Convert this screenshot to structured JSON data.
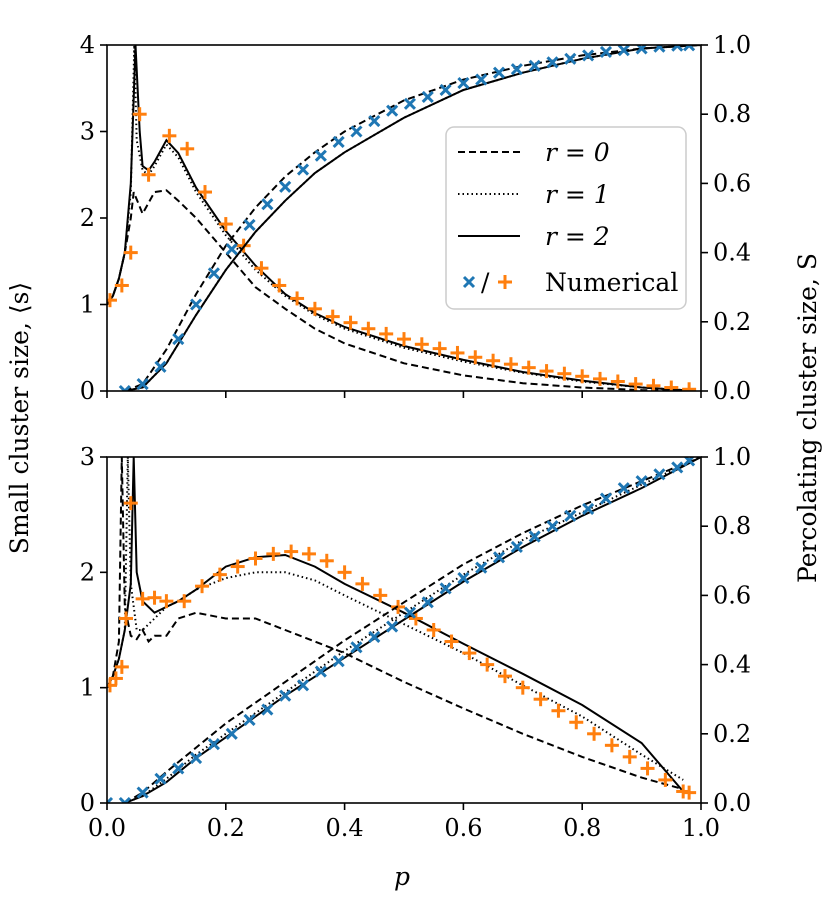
{
  "figure": {
    "xlabel": "p",
    "ylabel_left": "Small cluster size, ⟨s⟩",
    "ylabel_right": "Percolating cluster size, S"
  },
  "colors": {
    "line": "#000000",
    "cross_marker": "#1f77b4",
    "plus_marker": "#ff7f0e",
    "frame": "#000000"
  },
  "legend": {
    "entries": [
      {
        "label": "r = 0",
        "style": "dashed"
      },
      {
        "label": "r = 1",
        "style": "dotted"
      },
      {
        "label": "r = 2",
        "style": "solid"
      },
      {
        "label": "Numerical",
        "style": "markers",
        "separator": "/"
      }
    ]
  },
  "chart_data": [
    {
      "type": "line",
      "panel": "top",
      "xlim": [
        0,
        1
      ],
      "ylim_left": [
        0,
        4
      ],
      "ylim_right": [
        0,
        1
      ],
      "xticks": [
        0.0,
        0.2,
        0.4,
        0.6,
        0.8,
        1.0
      ],
      "yticks_left": [
        "0",
        "1",
        "2",
        "3",
        "4"
      ],
      "yticks_right": [
        "0.0",
        "0.2",
        "0.4",
        "0.6",
        "0.8",
        "1.0"
      ],
      "small_cluster": {
        "axis": "left",
        "series": [
          {
            "name": "r = 0",
            "style": "dashed",
            "x": [
              0.0,
              0.01,
              0.02,
              0.03,
              0.04,
              0.045,
              0.06,
              0.08,
              0.1,
              0.12,
              0.15,
              0.2,
              0.25,
              0.3,
              0.35,
              0.4,
              0.5,
              0.6,
              0.7,
              0.8,
              0.9,
              0.97
            ],
            "y": [
              1.0,
              1.1,
              1.3,
              1.6,
              2.0,
              2.3,
              2.05,
              2.3,
              2.32,
              2.2,
              2.0,
              1.6,
              1.2,
              0.95,
              0.72,
              0.55,
              0.32,
              0.18,
              0.09,
              0.04,
              0.01,
              0.0
            ]
          },
          {
            "name": "r = 1",
            "style": "dotted",
            "x": [
              0.0,
              0.01,
              0.02,
              0.03,
              0.04,
              0.046,
              0.05,
              0.06,
              0.07,
              0.08,
              0.1,
              0.12,
              0.15,
              0.2,
              0.25,
              0.3,
              0.35,
              0.4,
              0.5,
              0.6,
              0.7,
              0.8,
              0.9,
              0.97
            ],
            "y": [
              1.0,
              1.1,
              1.3,
              1.6,
              2.3,
              4.0,
              2.9,
              2.55,
              2.5,
              2.6,
              2.85,
              2.7,
              2.3,
              1.8,
              1.4,
              1.1,
              0.88,
              0.72,
              0.5,
              0.34,
              0.21,
              0.11,
              0.04,
              0.01
            ]
          },
          {
            "name": "r = 2",
            "style": "solid",
            "x": [
              0.0,
              0.01,
              0.02,
              0.03,
              0.04,
              0.048,
              0.055,
              0.06,
              0.07,
              0.08,
              0.1,
              0.12,
              0.15,
              0.2,
              0.25,
              0.3,
              0.35,
              0.4,
              0.5,
              0.6,
              0.7,
              0.8,
              0.9,
              0.97
            ],
            "y": [
              1.0,
              1.1,
              1.3,
              1.6,
              2.4,
              4.0,
              3.0,
              2.6,
              2.55,
              2.65,
              2.9,
              2.75,
              2.35,
              1.85,
              1.45,
              1.12,
              0.9,
              0.74,
              0.52,
              0.36,
              0.22,
              0.12,
              0.04,
              0.01
            ]
          },
          {
            "name": "Numerical",
            "style": "plus",
            "color": "#ff7f0e",
            "x": [
              0.005,
              0.025,
              0.04,
              0.055,
              0.07,
              0.105,
              0.135,
              0.165,
              0.2,
              0.23,
              0.26,
              0.29,
              0.32,
              0.35,
              0.38,
              0.41,
              0.44,
              0.47,
              0.5,
              0.53,
              0.56,
              0.59,
              0.62,
              0.65,
              0.68,
              0.71,
              0.74,
              0.77,
              0.8,
              0.83,
              0.86,
              0.89,
              0.92,
              0.95,
              0.98
            ],
            "y": [
              1.05,
              1.22,
              1.6,
              3.2,
              2.5,
              2.95,
              2.8,
              2.3,
              1.93,
              1.68,
              1.42,
              1.22,
              1.07,
              0.95,
              0.86,
              0.79,
              0.72,
              0.66,
              0.6,
              0.54,
              0.49,
              0.44,
              0.39,
              0.35,
              0.31,
              0.27,
              0.23,
              0.2,
              0.17,
              0.14,
              0.11,
              0.08,
              0.06,
              0.04,
              0.02
            ]
          }
        ]
      },
      "percolating_cluster": {
        "axis": "right",
        "series": [
          {
            "name": "r = 0",
            "style": "dashed",
            "x": [
              0.03,
              0.06,
              0.1,
              0.15,
              0.2,
              0.25,
              0.3,
              0.35,
              0.4,
              0.5,
              0.6,
              0.7,
              0.8,
              0.9,
              1.0
            ],
            "y": [
              0.0,
              0.02,
              0.12,
              0.28,
              0.42,
              0.53,
              0.62,
              0.69,
              0.75,
              0.84,
              0.9,
              0.94,
              0.97,
              0.99,
              1.0
            ]
          },
          {
            "name": "r = 1",
            "style": "dotted",
            "x": [
              0.03,
              0.06,
              0.1,
              0.15,
              0.2,
              0.25,
              0.3,
              0.35,
              0.4,
              0.5,
              0.6,
              0.7,
              0.8,
              0.9,
              1.0
            ],
            "y": [
              0.0,
              0.01,
              0.08,
              0.22,
              0.35,
              0.46,
              0.55,
              0.63,
              0.69,
              0.79,
              0.87,
              0.92,
              0.96,
              0.99,
              1.0
            ]
          },
          {
            "name": "r = 2",
            "style": "solid",
            "x": [
              0.03,
              0.06,
              0.1,
              0.15,
              0.2,
              0.25,
              0.3,
              0.35,
              0.4,
              0.5,
              0.6,
              0.7,
              0.8,
              0.9,
              1.0
            ],
            "y": [
              0.0,
              0.01,
              0.08,
              0.22,
              0.35,
              0.46,
              0.55,
              0.63,
              0.69,
              0.79,
              0.87,
              0.92,
              0.96,
              0.99,
              1.0
            ]
          },
          {
            "name": "Numerical",
            "style": "cross",
            "color": "#1f77b4",
            "x": [
              0.03,
              0.06,
              0.09,
              0.12,
              0.15,
              0.18,
              0.21,
              0.24,
              0.27,
              0.3,
              0.33,
              0.36,
              0.39,
              0.42,
              0.45,
              0.48,
              0.51,
              0.54,
              0.57,
              0.6,
              0.63,
              0.66,
              0.69,
              0.72,
              0.75,
              0.78,
              0.81,
              0.84,
              0.87,
              0.9,
              0.93,
              0.96,
              0.98
            ],
            "y": [
              0.0,
              0.02,
              0.07,
              0.15,
              0.25,
              0.34,
              0.41,
              0.48,
              0.54,
              0.59,
              0.64,
              0.68,
              0.72,
              0.75,
              0.78,
              0.81,
              0.83,
              0.85,
              0.87,
              0.89,
              0.9,
              0.92,
              0.93,
              0.94,
              0.95,
              0.96,
              0.97,
              0.98,
              0.985,
              0.99,
              0.995,
              0.998,
              0.999
            ]
          }
        ]
      }
    },
    {
      "type": "line",
      "panel": "bottom",
      "xlim": [
        0,
        1
      ],
      "ylim_left": [
        0,
        3
      ],
      "ylim_right": [
        0,
        1
      ],
      "xticks": [
        0.0,
        0.2,
        0.4,
        0.6,
        0.8,
        1.0
      ],
      "xtick_labels": [
        "0.0",
        "0.2",
        "0.4",
        "0.6",
        "0.8",
        "1.0"
      ],
      "yticks_left": [
        "0",
        "1",
        "2",
        "3"
      ],
      "yticks_right": [
        "0.0",
        "0.2",
        "0.4",
        "0.6",
        "0.8",
        "1.0"
      ],
      "small_cluster": {
        "axis": "left",
        "series": [
          {
            "name": "r = 0",
            "style": "dashed",
            "x": [
              0.0,
              0.01,
              0.02,
              0.025,
              0.03,
              0.04,
              0.05,
              0.06,
              0.07,
              0.08,
              0.1,
              0.12,
              0.15,
              0.2,
              0.25,
              0.3,
              0.4,
              0.5,
              0.6,
              0.7,
              0.8,
              0.9,
              0.97
            ],
            "y": [
              1.0,
              1.1,
              1.4,
              3.0,
              1.7,
              1.45,
              1.42,
              1.5,
              1.4,
              1.45,
              1.45,
              1.6,
              1.65,
              1.6,
              1.6,
              1.5,
              1.3,
              1.05,
              0.82,
              0.6,
              0.4,
              0.22,
              0.12
            ]
          },
          {
            "name": "r = 1",
            "style": "dotted",
            "x": [
              0.0,
              0.01,
              0.02,
              0.03,
              0.035,
              0.04,
              0.05,
              0.06,
              0.08,
              0.1,
              0.12,
              0.15,
              0.2,
              0.25,
              0.3,
              0.35,
              0.4,
              0.5,
              0.6,
              0.7,
              0.8,
              0.9,
              0.97
            ],
            "y": [
              1.0,
              1.1,
              1.25,
              1.5,
              3.0,
              1.9,
              1.5,
              1.5,
              1.6,
              1.7,
              1.75,
              1.85,
              1.95,
              2.0,
              2.0,
              1.93,
              1.8,
              1.55,
              1.3,
              1.02,
              0.75,
              0.42,
              0.2
            ]
          },
          {
            "name": "r = 2",
            "style": "solid",
            "x": [
              0.0,
              0.01,
              0.02,
              0.03,
              0.04,
              0.045,
              0.05,
              0.06,
              0.08,
              0.1,
              0.12,
              0.15,
              0.2,
              0.25,
              0.3,
              0.35,
              0.4,
              0.5,
              0.6,
              0.7,
              0.8,
              0.9,
              0.97
            ],
            "y": [
              1.0,
              1.1,
              1.25,
              1.5,
              1.9,
              3.0,
              2.0,
              1.75,
              1.65,
              1.7,
              1.75,
              1.85,
              2.05,
              2.13,
              2.15,
              2.05,
              1.9,
              1.65,
              1.38,
              1.12,
              0.85,
              0.52,
              0.1
            ]
          },
          {
            "name": "Numerical",
            "style": "plus",
            "color": "#ff7f0e",
            "x": [
              0.005,
              0.015,
              0.025,
              0.032,
              0.04,
              0.06,
              0.08,
              0.1,
              0.13,
              0.16,
              0.19,
              0.22,
              0.25,
              0.28,
              0.31,
              0.34,
              0.37,
              0.4,
              0.43,
              0.46,
              0.49,
              0.52,
              0.55,
              0.58,
              0.61,
              0.64,
              0.67,
              0.7,
              0.73,
              0.76,
              0.79,
              0.82,
              0.85,
              0.88,
              0.91,
              0.94,
              0.97,
              0.98
            ],
            "y": [
              1.02,
              1.08,
              1.18,
              1.6,
              2.6,
              1.77,
              1.78,
              1.75,
              1.75,
              1.88,
              1.98,
              2.05,
              2.12,
              2.16,
              2.18,
              2.16,
              2.1,
              2.0,
              1.9,
              1.8,
              1.7,
              1.6,
              1.5,
              1.4,
              1.3,
              1.2,
              1.1,
              1.0,
              0.9,
              0.8,
              0.7,
              0.6,
              0.5,
              0.4,
              0.3,
              0.2,
              0.1,
              0.09
            ]
          }
        ]
      },
      "percolating_cluster": {
        "axis": "right",
        "series": [
          {
            "name": "r = 0",
            "style": "dashed",
            "x": [
              0.03,
              0.06,
              0.1,
              0.15,
              0.2,
              0.3,
              0.4,
              0.5,
              0.6,
              0.7,
              0.8,
              0.9,
              1.0
            ],
            "y": [
              0.0,
              0.03,
              0.09,
              0.16,
              0.23,
              0.35,
              0.47,
              0.58,
              0.69,
              0.78,
              0.86,
              0.93,
              1.0
            ]
          },
          {
            "name": "r = 1",
            "style": "dotted",
            "x": [
              0.03,
              0.06,
              0.1,
              0.15,
              0.2,
              0.3,
              0.4,
              0.5,
              0.6,
              0.7,
              0.8,
              0.9,
              1.0
            ],
            "y": [
              0.0,
              0.02,
              0.07,
              0.14,
              0.2,
              0.32,
              0.44,
              0.55,
              0.66,
              0.76,
              0.84,
              0.92,
              1.0
            ]
          },
          {
            "name": "r = 2",
            "style": "solid",
            "x": [
              0.03,
              0.06,
              0.1,
              0.15,
              0.2,
              0.3,
              0.4,
              0.5,
              0.6,
              0.7,
              0.8,
              0.9,
              1.0
            ],
            "y": [
              0.0,
              0.02,
              0.06,
              0.13,
              0.19,
              0.31,
              0.42,
              0.53,
              0.64,
              0.74,
              0.83,
              0.91,
              1.0
            ]
          },
          {
            "name": "Numerical",
            "style": "cross",
            "color": "#1f77b4",
            "x": [
              0.0,
              0.03,
              0.06,
              0.09,
              0.12,
              0.15,
              0.18,
              0.21,
              0.24,
              0.27,
              0.3,
              0.33,
              0.36,
              0.39,
              0.42,
              0.45,
              0.48,
              0.51,
              0.54,
              0.57,
              0.6,
              0.63,
              0.66,
              0.69,
              0.72,
              0.75,
              0.78,
              0.81,
              0.84,
              0.87,
              0.9,
              0.93,
              0.96,
              0.98
            ],
            "y": [
              0.0,
              0.0,
              0.03,
              0.07,
              0.1,
              0.13,
              0.17,
              0.2,
              0.24,
              0.27,
              0.31,
              0.34,
              0.38,
              0.41,
              0.45,
              0.48,
              0.51,
              0.55,
              0.58,
              0.62,
              0.65,
              0.68,
              0.71,
              0.74,
              0.77,
              0.8,
              0.83,
              0.85,
              0.88,
              0.91,
              0.93,
              0.95,
              0.97,
              0.99
            ]
          }
        ]
      }
    }
  ]
}
